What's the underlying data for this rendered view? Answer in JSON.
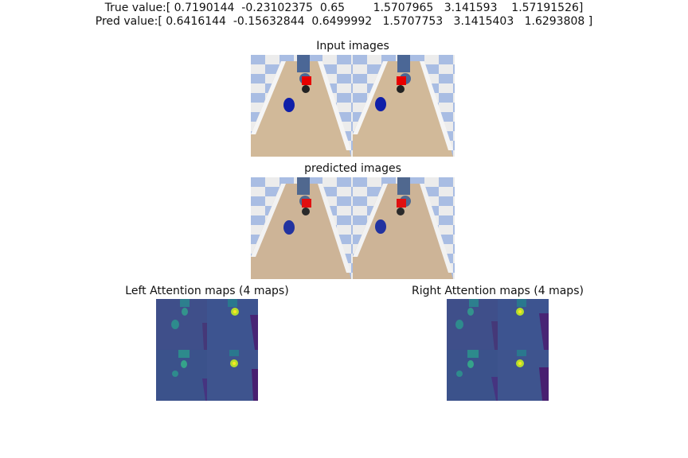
{
  "header": {
    "true_value": "True value:[ 0.7190144  -0.23102375  0.65        1.5707965   3.141593    1.57191526]",
    "pred_value": "Pred value:[ 0.6416144  -0.15632844  0.6499992   1.5707753   3.1415403   1.6293808 ]"
  },
  "panels": {
    "input_title": "Input images",
    "predicted_title": "predicted images",
    "left_attention_title": "Left Attention maps (4 maps)",
    "right_attention_title": "Right Attention maps (4 maps)"
  },
  "colors": {
    "floor_blue": "#a9bde3",
    "floor_white": "#ececec",
    "table": "#d1b999",
    "gripper": "#4b6796",
    "red_block": "#e60000",
    "blue_block": "#0f1fa8",
    "attention_bg": "#3f4f8a",
    "attention_hot": "#dfe35a"
  }
}
